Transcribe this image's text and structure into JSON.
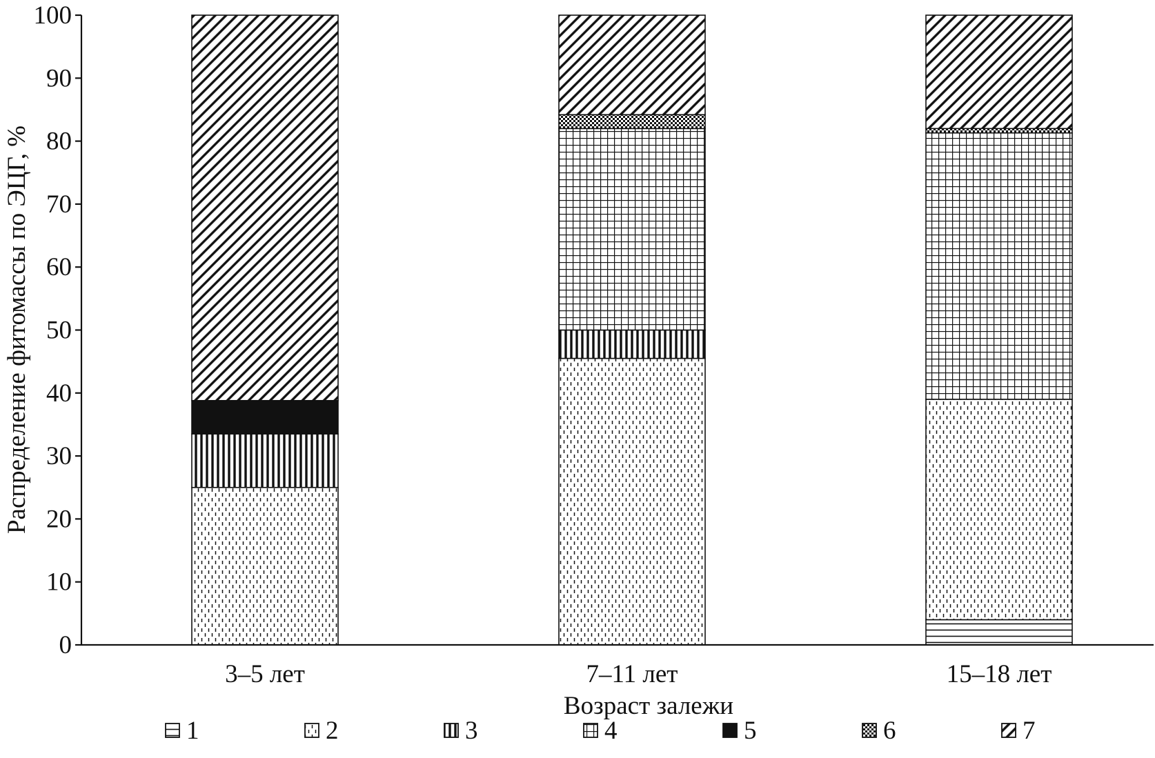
{
  "chart_data": {
    "type": "bar",
    "stacked": true,
    "xlabel": "Возраст залежи",
    "ylabel": "Распределение фитомассы по ЭЦГ, %",
    "ylim": [
      0,
      100
    ],
    "yticks": [
      "0",
      "10",
      "20",
      "30",
      "40",
      "50",
      "60",
      "70",
      "80",
      "90",
      "100"
    ],
    "grid": false,
    "legend_position": "bottom",
    "categories": [
      "3–5 лет",
      "7–11 лет",
      "15–18 лет"
    ],
    "series": [
      {
        "name": "1",
        "pattern": "horizontal-lines",
        "values": [
          0,
          0,
          4
        ]
      },
      {
        "name": "2",
        "pattern": "dashed-vertical",
        "values": [
          25,
          45.5,
          35
        ]
      },
      {
        "name": "3",
        "pattern": "vertical-lines",
        "values": [
          8.5,
          4.5,
          0
        ]
      },
      {
        "name": "4",
        "pattern": "grid",
        "values": [
          0,
          32,
          42.3
        ]
      },
      {
        "name": "5",
        "pattern": "solid-black",
        "values": [
          5.3,
          0,
          0
        ]
      },
      {
        "name": "6",
        "pattern": "checker",
        "values": [
          0,
          2.2,
          0.7
        ]
      },
      {
        "name": "7",
        "pattern": "diagonal-lines",
        "values": [
          61.2,
          15.8,
          18
        ]
      }
    ],
    "colors": {
      "ink": "#111111",
      "background": "#ffffff"
    }
  }
}
